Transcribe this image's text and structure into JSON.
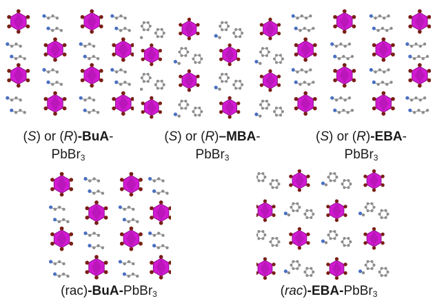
{
  "colors": {
    "octahedron": "#d11ad1",
    "octahedron_dark": "#8f108f",
    "bromine": "#7a1f16",
    "carbon": "#8c8c8c",
    "nitrogen": "#4a6fc2",
    "bond": "#9a9a9a"
  },
  "panels": [
    {
      "name": "S-R-BuA",
      "structure": "BuA",
      "caption": {
        "open1": "(",
        "c1": "S",
        "mid": ") or (",
        "c2": "R",
        "close": ")",
        "bold": "-BuA",
        "tail": "-",
        "line2": "PbBr",
        "sub": "3"
      }
    },
    {
      "name": "S-R-MBA",
      "structure": "MBA",
      "caption": {
        "open1": "(",
        "c1": "S",
        "mid": ") or (",
        "c2": "R",
        "close": ")",
        "bold": "–MBA",
        "tail": "-",
        "line2": "PbBr",
        "sub": "3"
      }
    },
    {
      "name": "S-R-EBA",
      "structure": "EBA",
      "caption": {
        "open1": "(",
        "c1": "S",
        "mid": ") or (",
        "c2": "R",
        "close": ")",
        "bold": "-EBA",
        "tail": "-",
        "line2": "PbBr",
        "sub": "3"
      }
    },
    {
      "name": "rac-BuA",
      "structure": "BuA",
      "caption": {
        "pre": "(rac)",
        "bold": "-BuA-",
        "tail": "PbBr",
        "sub": "3"
      }
    },
    {
      "name": "rac-EBA",
      "structure": "racEBA",
      "caption": {
        "open1": "(",
        "c1": "rac",
        "close": ")",
        "bold": "-EBA-",
        "tail": "PbBr",
        "sub": "3"
      }
    }
  ]
}
